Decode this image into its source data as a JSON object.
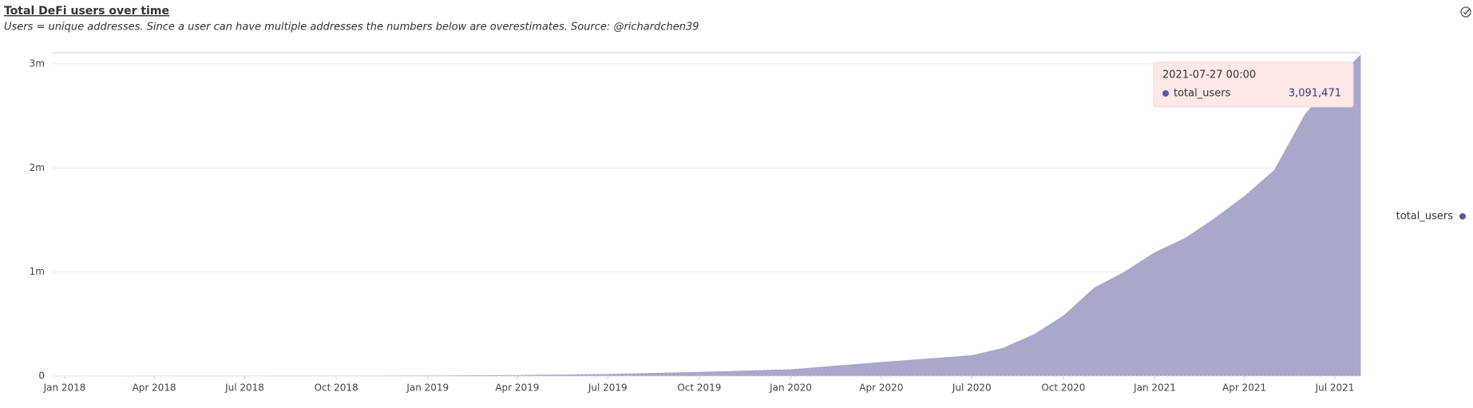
{
  "chart_data": {
    "type": "area",
    "title": "Total DeFi users over time",
    "subtitle": "Users = unique addresses. Since a user can have multiple addresses the numbers below are overestimates. Source: @richardchen39",
    "x": [
      "2018-01",
      "2018-04",
      "2018-07",
      "2018-10",
      "2019-01",
      "2019-04",
      "2019-07",
      "2019-10",
      "2020-01",
      "2020-04",
      "2020-07",
      "2020-08",
      "2020-09",
      "2020-10",
      "2020-11",
      "2020-12",
      "2021-01",
      "2021-02",
      "2021-03",
      "2021-04",
      "2021-05",
      "2021-06",
      "2021-07",
      "2021-07-27"
    ],
    "series": [
      {
        "name": "total_users",
        "color": "#a9a8cb",
        "marker_color": "#5b57a0",
        "values": [
          0,
          1000,
          2000,
          3000,
          5000,
          10000,
          20000,
          40000,
          65000,
          135000,
          200000,
          270000,
          400000,
          580000,
          850000,
          1000000,
          1190000,
          1330000,
          1510000,
          1730000,
          1980000,
          2520000,
          2840000,
          3091471
        ]
      }
    ],
    "ylim": [
      0,
      3100000
    ],
    "yticks": [
      0,
      {
        "value": 1000000,
        "label": "1m"
      },
      {
        "value": 2000000,
        "label": "2m"
      },
      {
        "value": 3000000,
        "label": "3m"
      }
    ],
    "xticks": [
      {
        "value": "2018-01",
        "label": "Jan 2018"
      },
      {
        "value": "2018-04",
        "label": "Apr 2018"
      },
      {
        "value": "2018-07",
        "label": "Jul 2018"
      },
      {
        "value": "2018-10",
        "label": "Oct 2018"
      },
      {
        "value": "2019-01",
        "label": "Jan 2019"
      },
      {
        "value": "2019-04",
        "label": "Apr 2019"
      },
      {
        "value": "2019-07",
        "label": "Jul 2019"
      },
      {
        "value": "2019-10",
        "label": "Oct 2019"
      },
      {
        "value": "2020-01",
        "label": "Jan 2020"
      },
      {
        "value": "2020-04",
        "label": "Apr 2020"
      },
      {
        "value": "2020-07",
        "label": "Jul 2020"
      },
      {
        "value": "2020-10",
        "label": "Oct 2020"
      },
      {
        "value": "2021-01",
        "label": "Jan 2021"
      },
      {
        "value": "2021-04",
        "label": "Apr 2021"
      },
      {
        "value": "2021-07",
        "label": "Jul 2021"
      }
    ],
    "grid": true,
    "legend": "right",
    "tooltip": {
      "title": "2021-07-27 00:00",
      "value_label": "3,091,471"
    }
  }
}
